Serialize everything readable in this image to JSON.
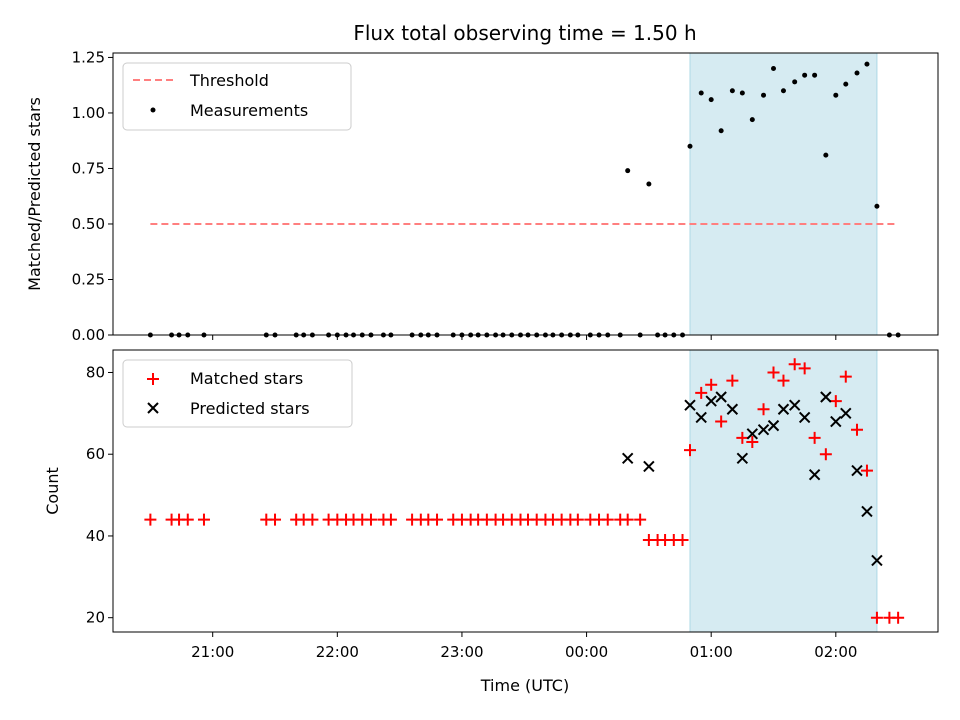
{
  "chart_data": [
    {
      "type": "scatter",
      "panel": "top",
      "title": "Flux total observing time = 1.50 h",
      "xlabel": "",
      "ylabel": "Matched/Predicted stars",
      "ylim": [
        0,
        1.27
      ],
      "xlim_hours": [
        20.2,
        26.82
      ],
      "yticks": [
        0,
        0.25,
        0.5,
        0.75,
        1.0,
        1.25
      ],
      "ytick_labels": [
        "0.00",
        "0.25",
        "0.50",
        "0.75",
        "1.00",
        "1.25"
      ],
      "grid": false,
      "legend_placement": "top-left",
      "shaded_interval_hours": [
        24.83,
        26.33
      ],
      "shade_color": "#add8e6",
      "series": [
        {
          "name": "Threshold",
          "kind": "dashed-line",
          "color": "#ff7f7f",
          "x": [
            20.5,
            26.5
          ],
          "y": [
            0.5,
            0.5
          ]
        },
        {
          "name": "Measurements",
          "kind": "dot",
          "color": "#000000",
          "points": [
            [
              20.5,
              0
            ],
            [
              20.67,
              0
            ],
            [
              20.73,
              0
            ],
            [
              20.8,
              0
            ],
            [
              20.93,
              0
            ],
            [
              21.43,
              0
            ],
            [
              21.5,
              0
            ],
            [
              21.67,
              0
            ],
            [
              21.73,
              0
            ],
            [
              21.8,
              0
            ],
            [
              21.93,
              0
            ],
            [
              22.0,
              0
            ],
            [
              22.07,
              0
            ],
            [
              22.13,
              0
            ],
            [
              22.2,
              0
            ],
            [
              22.27,
              0
            ],
            [
              22.37,
              0
            ],
            [
              22.43,
              0
            ],
            [
              22.6,
              0
            ],
            [
              22.67,
              0
            ],
            [
              22.73,
              0
            ],
            [
              22.8,
              0
            ],
            [
              22.93,
              0
            ],
            [
              23.0,
              0
            ],
            [
              23.07,
              0
            ],
            [
              23.13,
              0
            ],
            [
              23.2,
              0
            ],
            [
              23.27,
              0
            ],
            [
              23.33,
              0
            ],
            [
              23.4,
              0
            ],
            [
              23.47,
              0
            ],
            [
              23.53,
              0
            ],
            [
              23.6,
              0
            ],
            [
              23.67,
              0
            ],
            [
              23.73,
              0
            ],
            [
              23.8,
              0
            ],
            [
              23.87,
              0
            ],
            [
              23.93,
              0
            ],
            [
              24.03,
              0
            ],
            [
              24.1,
              0
            ],
            [
              24.17,
              0
            ],
            [
              24.27,
              0
            ],
            [
              24.33,
              0.74
            ],
            [
              24.5,
              0.68
            ],
            [
              24.43,
              0
            ],
            [
              24.57,
              0
            ],
            [
              24.63,
              0
            ],
            [
              24.7,
              0
            ],
            [
              24.77,
              0
            ],
            [
              24.83,
              0.85
            ],
            [
              24.92,
              1.09
            ],
            [
              25.0,
              1.06
            ],
            [
              25.08,
              0.92
            ],
            [
              25.17,
              1.1
            ],
            [
              25.25,
              1.09
            ],
            [
              25.33,
              0.97
            ],
            [
              25.42,
              1.08
            ],
            [
              25.5,
              1.2
            ],
            [
              25.58,
              1.1
            ],
            [
              25.67,
              1.14
            ],
            [
              25.75,
              1.17
            ],
            [
              25.83,
              1.17
            ],
            [
              25.92,
              0.81
            ],
            [
              26.0,
              1.08
            ],
            [
              26.08,
              1.13
            ],
            [
              26.17,
              1.18
            ],
            [
              26.25,
              1.22
            ],
            [
              26.33,
              0.58
            ],
            [
              26.43,
              0
            ],
            [
              26.5,
              0
            ]
          ]
        }
      ]
    },
    {
      "type": "scatter",
      "panel": "bottom",
      "title": "",
      "xlabel": "Time (UTC)",
      "ylabel": "Count",
      "ylim": [
        16.5,
        85.5
      ],
      "xlim_hours": [
        20.2,
        26.82
      ],
      "yticks": [
        20,
        40,
        60,
        80
      ],
      "ytick_labels": [
        "20",
        "40",
        "60",
        "80"
      ],
      "xticks_hours": [
        21,
        22,
        23,
        24,
        25,
        26
      ],
      "xtick_labels": [
        "21:00",
        "22:00",
        "23:00",
        "00:00",
        "01:00",
        "02:00"
      ],
      "grid": false,
      "legend_placement": "top-left",
      "shaded_interval_hours": [
        24.83,
        26.33
      ],
      "shade_color": "#add8e6",
      "series": [
        {
          "name": "Matched stars",
          "kind": "plus",
          "color": "#ff0000",
          "points": [
            [
              20.5,
              44
            ],
            [
              20.67,
              44
            ],
            [
              20.73,
              44
            ],
            [
              20.8,
              44
            ],
            [
              20.93,
              44
            ],
            [
              21.43,
              44
            ],
            [
              21.5,
              44
            ],
            [
              21.67,
              44
            ],
            [
              21.73,
              44
            ],
            [
              21.8,
              44
            ],
            [
              21.93,
              44
            ],
            [
              22.0,
              44
            ],
            [
              22.07,
              44
            ],
            [
              22.13,
              44
            ],
            [
              22.2,
              44
            ],
            [
              22.27,
              44
            ],
            [
              22.37,
              44
            ],
            [
              22.43,
              44
            ],
            [
              22.6,
              44
            ],
            [
              22.67,
              44
            ],
            [
              22.73,
              44
            ],
            [
              22.8,
              44
            ],
            [
              22.93,
              44
            ],
            [
              23.0,
              44
            ],
            [
              23.07,
              44
            ],
            [
              23.13,
              44
            ],
            [
              23.2,
              44
            ],
            [
              23.27,
              44
            ],
            [
              23.33,
              44
            ],
            [
              23.4,
              44
            ],
            [
              23.47,
              44
            ],
            [
              23.53,
              44
            ],
            [
              23.6,
              44
            ],
            [
              23.67,
              44
            ],
            [
              23.73,
              44
            ],
            [
              23.8,
              44
            ],
            [
              23.87,
              44
            ],
            [
              23.93,
              44
            ],
            [
              24.03,
              44
            ],
            [
              24.1,
              44
            ],
            [
              24.17,
              44
            ],
            [
              24.27,
              44
            ],
            [
              24.33,
              44
            ],
            [
              24.43,
              44
            ],
            [
              24.5,
              39
            ],
            [
              24.57,
              39
            ],
            [
              24.63,
              39
            ],
            [
              24.7,
              39
            ],
            [
              24.77,
              39
            ],
            [
              24.83,
              61
            ],
            [
              24.92,
              75
            ],
            [
              25.0,
              77
            ],
            [
              25.08,
              68
            ],
            [
              25.17,
              78
            ],
            [
              25.25,
              64
            ],
            [
              25.33,
              63
            ],
            [
              25.42,
              71
            ],
            [
              25.5,
              80
            ],
            [
              25.58,
              78
            ],
            [
              25.67,
              82
            ],
            [
              25.75,
              81
            ],
            [
              25.83,
              64
            ],
            [
              25.92,
              60
            ],
            [
              26.0,
              73
            ],
            [
              26.08,
              79
            ],
            [
              26.17,
              66
            ],
            [
              26.25,
              56
            ],
            [
              26.33,
              20
            ],
            [
              26.43,
              20
            ],
            [
              26.5,
              20
            ]
          ]
        },
        {
          "name": "Predicted stars",
          "kind": "x",
          "color": "#000000",
          "points": [
            [
              24.33,
              59
            ],
            [
              24.5,
              57
            ],
            [
              24.83,
              72
            ],
            [
              24.92,
              69
            ],
            [
              25.0,
              73
            ],
            [
              25.08,
              74
            ],
            [
              25.17,
              71
            ],
            [
              25.25,
              59
            ],
            [
              25.33,
              65
            ],
            [
              25.42,
              66
            ],
            [
              25.5,
              67
            ],
            [
              25.58,
              71
            ],
            [
              25.67,
              72
            ],
            [
              25.75,
              69
            ],
            [
              25.83,
              55
            ],
            [
              25.92,
              74
            ],
            [
              26.0,
              68
            ],
            [
              26.08,
              70
            ],
            [
              26.17,
              56
            ],
            [
              26.25,
              46
            ],
            [
              26.33,
              34
            ]
          ]
        }
      ]
    }
  ]
}
